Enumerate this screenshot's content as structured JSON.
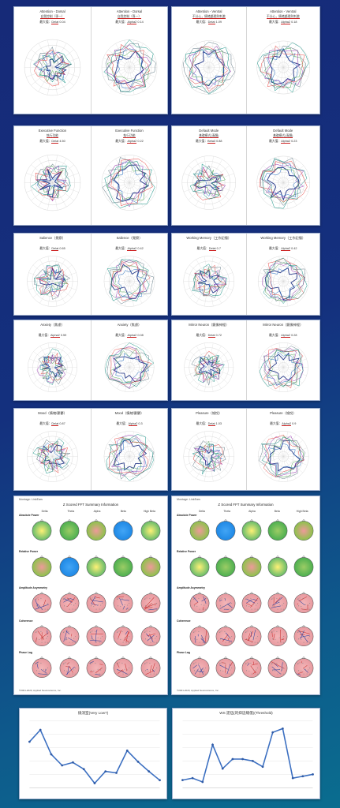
{
  "radar_cards": [
    {
      "panels": [
        {
          "title": "Attention - Dorsal",
          "sub": "自我控制（專一）",
          "val_label": "最大值：",
          "val_word": "Delat",
          "val_num": "0.04"
        },
        {
          "title": "Attention - Dorsal",
          "sub": "自我控制（專一）",
          "val_label": "最大值：",
          "val_word": "Alpha2",
          "val_num": "0.14"
        }
      ]
    },
    {
      "panels": [
        {
          "title": "Attention - Ventral",
          "sub": "不分心，情緒處理與刺激",
          "val_label": "最大值：",
          "val_word": "Delat",
          "val_num": "1.09"
        },
        {
          "title": "Attention - Ventral",
          "sub": "不分心，情緒處理與刺激",
          "val_label": "最大值：",
          "val_word": "Alpha2",
          "val_num": "0.18"
        }
      ]
    },
    {
      "panels": [
        {
          "title": "Executive Function",
          "sub": "執行功能",
          "val_label": "最大值：",
          "val_word": "Delat",
          "val_num": "4.50"
        },
        {
          "title": "Executive Function",
          "sub": "執行功能",
          "val_label": "最大值：",
          "val_word": "Alpha2",
          "val_num": "0.22"
        }
      ]
    },
    {
      "panels": [
        {
          "title": "Default Mode",
          "sub": "基礎模式(清醒)",
          "val_label": "最大值：",
          "val_word": "Beta3",
          "val_num": "0.88"
        },
        {
          "title": "Default Mode",
          "sub": "基礎模式(清醒)",
          "val_label": "最大值：",
          "val_word": "Alpha2",
          "val_num": "0.23"
        }
      ]
    },
    {
      "panels": [
        {
          "title": "Salience（覺察）",
          "sub": "",
          "val_label": "最大值：",
          "val_word": "Delat",
          "val_num": "0.65"
        },
        {
          "title": "Salience（覺察）",
          "sub": "",
          "val_label": "最大值：",
          "val_word": "Alpha2",
          "val_num": "0.42"
        }
      ]
    },
    {
      "panels": [
        {
          "title": "Working Memory（工作記憶）",
          "sub": "",
          "val_label": "最大值：",
          "val_word": "Delat",
          "val_num": "0.7"
        },
        {
          "title": "Working Memory（工作記憶）",
          "sub": "",
          "val_label": "最大值：",
          "val_word": "Alpha2",
          "val_num": "0.42"
        }
      ]
    },
    {
      "panels": [
        {
          "title": "Anxiety（焦慮）",
          "sub": "",
          "val_label": "最大值：",
          "val_word": "Alpha2",
          "val_num": "0.59"
        },
        {
          "title": "Anxiety（焦慮）",
          "sub": "",
          "val_label": "最大值：",
          "val_word": "Alpha2",
          "val_num": "0.08"
        }
      ]
    },
    {
      "panels": [
        {
          "title": "Mirror Neuron（鏡像神經）",
          "sub": "",
          "val_label": "最大值：",
          "val_word": "Delat",
          "val_num": "0.72"
        },
        {
          "title": "Mirror Neuron（鏡像神經）",
          "sub": "",
          "val_label": "最大值：",
          "val_word": "Alpha2",
          "val_num": "0.28"
        }
      ]
    },
    {
      "panels": [
        {
          "title": "Mood（情緒/憂鬱）",
          "sub": "",
          "val_label": "最大值：",
          "val_word": "Delat",
          "val_num": "0.87"
        },
        {
          "title": "Mood（情緒/憂鬱）",
          "sub": "",
          "val_label": "最大值：",
          "val_word": "Alpha2",
          "val_num": "0.3"
        }
      ]
    },
    {
      "panels": [
        {
          "title": "Pleasure（愉悅）",
          "sub": "",
          "val_label": "最大值：",
          "val_word": "Delat",
          "val_num": "1.03"
        },
        {
          "title": "Pleasure（愉悅）",
          "sub": "",
          "val_label": "最大值：",
          "val_word": "Alpha2",
          "val_num": "0.9"
        }
      ]
    }
  ],
  "qeeg": {
    "tag": "Montage: LinkEars",
    "title": "Z Scored FFT Summary Information",
    "columns": [
      "Delta",
      "Theta",
      "Alpha",
      "Beta",
      "High Beta"
    ],
    "rows": [
      "Absolute Power",
      "Relative Power",
      "Amplitude Asymmetry",
      "Coherence",
      "Phase Lag"
    ],
    "footer": "©2001-2020, Applied Neuroscience, Inc."
  },
  "line_charts": [
    {
      "title": "燒消室(Very Low?)",
      "chart_data": {
        "type": "line",
        "values": [
          62,
          78,
          45,
          30,
          34,
          25,
          6,
          22,
          20,
          50,
          35,
          22,
          10
        ],
        "ylim": [
          0,
          90
        ],
        "title": "燒消室(Very Low?)"
      }
    },
    {
      "title": "WS 諾伍(的抑這總值)(Threshold)",
      "chart_data": {
        "type": "line",
        "values": [
          8,
          10,
          6,
          45,
          20,
          30,
          30,
          28,
          22,
          58,
          62,
          10,
          12,
          14
        ],
        "ylim": [
          0,
          70
        ],
        "title": "WS 諾伍(的抑這總值)(Threshold)"
      }
    }
  ],
  "colors": {
    "accent_red": "#c62828",
    "series": [
      "#2b3e8c",
      "#1565c0",
      "#43a047",
      "#8e24aa",
      "#e53935",
      "#546e7a",
      "#00897b"
    ]
  }
}
